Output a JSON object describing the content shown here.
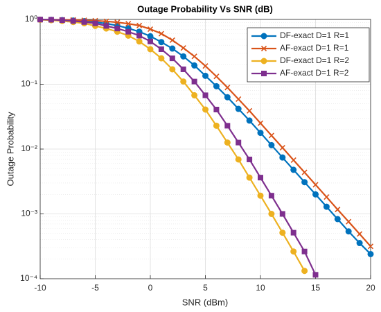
{
  "chart_data": {
    "type": "line",
    "title": "Outage Probability Vs SNR (dB)",
    "x_label": "SNR (dBm)",
    "y_label": "Outage Probability",
    "x": [
      -10,
      -9,
      -8,
      -7,
      -6,
      -5,
      -4,
      -3,
      -2,
      -1,
      0,
      1,
      2,
      3,
      4,
      5,
      6,
      7,
      8,
      9,
      10,
      11,
      12,
      13,
      14,
      15,
      16,
      17,
      18,
      19,
      20
    ],
    "series": [
      {
        "name": "DF-exact D=1 R=1",
        "color": "#0072BD",
        "marker": "circle",
        "values": [
          0.991,
          0.986,
          0.977,
          0.962,
          0.94,
          0.908,
          0.863,
          0.804,
          0.73,
          0.646,
          0.55,
          0.447,
          0.355,
          0.269,
          0.195,
          0.135,
          0.0933,
          0.0631,
          0.0417,
          0.0275,
          0.0178,
          0.0115,
          0.00741,
          0.00479,
          0.00309,
          0.002,
          0.00129,
          0.000832,
          0.000537,
          0.000355,
          0.00024
        ]
      },
      {
        "name": "AF-exact D=1 R=1",
        "color": "#D95319",
        "marker": "x",
        "values": [
          0.995,
          0.993,
          0.989,
          0.982,
          0.971,
          0.955,
          0.933,
          0.902,
          0.859,
          0.804,
          0.708,
          0.603,
          0.479,
          0.363,
          0.269,
          0.191,
          0.132,
          0.0891,
          0.0589,
          0.0389,
          0.0251,
          0.0162,
          0.0105,
          0.00676,
          0.00437,
          0.00282,
          0.00182,
          0.00117,
          0.000759,
          0.00049,
          0.000316
        ]
      },
      {
        "name": "DF-exact D=1 R=2",
        "color": "#EDB120",
        "marker": "circle",
        "values": [
          0.989,
          0.973,
          0.946,
          0.912,
          0.871,
          0.794,
          0.724,
          0.646,
          0.562,
          0.457,
          0.347,
          0.251,
          0.17,
          0.11,
          0.0676,
          0.0407,
          0.0229,
          0.0126,
          0.00692,
          0.00363,
          0.00191,
          0.001,
          0.000513,
          0.000263,
          0.000132,
          null,
          null,
          null,
          null,
          null,
          null
        ]
      },
      {
        "name": "AF-exact D=1 R=2",
        "color": "#7E2F8E",
        "marker": "square",
        "values": [
          0.995,
          0.989,
          0.973,
          0.946,
          0.912,
          0.871,
          0.794,
          0.724,
          0.646,
          0.562,
          0.457,
          0.347,
          0.251,
          0.17,
          0.11,
          0.0676,
          0.0407,
          0.0229,
          0.0126,
          0.00692,
          0.00363,
          0.00191,
          0.001,
          0.000513,
          0.000263,
          0.000115,
          null,
          null,
          null,
          null,
          null
        ]
      }
    ],
    "xlim": [
      -10,
      20
    ],
    "xticks": [
      -10,
      -5,
      0,
      5,
      10,
      15,
      20
    ],
    "ylim": [
      0.0001,
      1
    ],
    "y_scale": "log",
    "yticks": [
      {
        "value": 0.0001,
        "label": "10⁻⁴"
      },
      {
        "value": 0.001,
        "label": "10⁻³"
      },
      {
        "value": 0.01,
        "label": "10⁻²"
      },
      {
        "value": 0.1,
        "label": "10⁻¹"
      },
      {
        "value": 1,
        "label": "10⁰"
      }
    ],
    "grid": true,
    "minor_grid": true,
    "legend": "upper right"
  }
}
